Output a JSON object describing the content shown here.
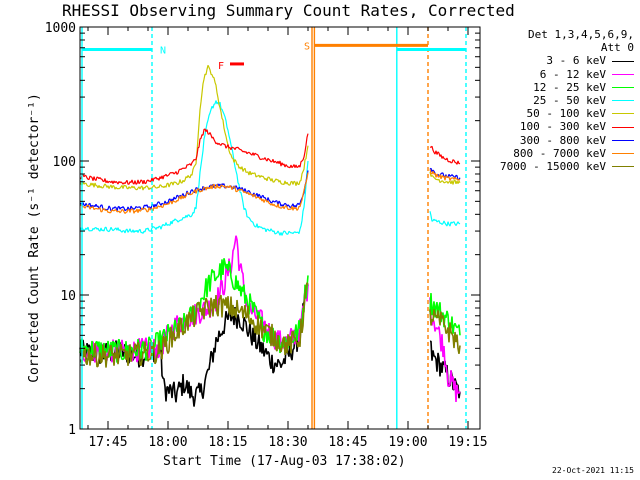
{
  "chart_data": {
    "type": "line",
    "title": "RHESSI Observing Summary Count Rates, Corrected",
    "xlabel": "Start Time (17-Aug-03 17:38:02)",
    "ylabel": "Corrected Count Rate (s⁻¹ detector⁻¹)",
    "y_scale": "log",
    "ylim": [
      1,
      1000
    ],
    "xlim_minutes": [
      0,
      100
    ],
    "x_ticks": [
      {
        "label": "17:45",
        "minutes": 7
      },
      {
        "label": "18:00",
        "minutes": 22
      },
      {
        "label": "18:15",
        "minutes": 37
      },
      {
        "label": "18:30",
        "minutes": 52
      },
      {
        "label": "18:45",
        "minutes": 67
      },
      {
        "label": "19:00",
        "minutes": 82
      },
      {
        "label": "19:15",
        "minutes": 97
      }
    ],
    "y_ticks": [
      {
        "label": "1",
        "value": 1
      },
      {
        "label": "10",
        "value": 10
      },
      {
        "label": "100",
        "value": 100
      },
      {
        "label": "1000",
        "value": 1000
      }
    ],
    "legend_header": [
      "Det 1,3,4,5,6,9,",
      "Att 0"
    ],
    "legend_position": "right",
    "series": [
      {
        "name": "3 - 6 keV",
        "color": "#000000",
        "points": [
          [
            0,
            3.8
          ],
          [
            5,
            3.6
          ],
          [
            10,
            3.8
          ],
          [
            15,
            3.5
          ],
          [
            20,
            4.0
          ],
          [
            21,
            2.0
          ],
          [
            24,
            1.8
          ],
          [
            26,
            2.2
          ],
          [
            28,
            1.8
          ],
          [
            30,
            1.8
          ],
          [
            32,
            2.6
          ],
          [
            34,
            4.5
          ],
          [
            36,
            6.0
          ],
          [
            38,
            7.0
          ],
          [
            40,
            6.8
          ],
          [
            42,
            5.5
          ],
          [
            44,
            4.5
          ],
          [
            46,
            3.8
          ],
          [
            48,
            3.2
          ],
          [
            50,
            3.0
          ],
          [
            52,
            3.5
          ],
          [
            55,
            5.0
          ],
          [
            56,
            8.0
          ],
          [
            57,
            12.0
          ],
          [
            58.5,
            null
          ],
          [
            87.5,
            4.2
          ],
          [
            88,
            3.5
          ],
          [
            90,
            3.0
          ],
          [
            92,
            2.5
          ],
          [
            94,
            2.0
          ],
          [
            95,
            1.9
          ]
        ]
      },
      {
        "name": "6 - 12 keV",
        "color": "#ff00ff",
        "points": [
          [
            0,
            3.8
          ],
          [
            10,
            3.8
          ],
          [
            20,
            4.0
          ],
          [
            22,
            5.0
          ],
          [
            24,
            6.0
          ],
          [
            26,
            6.5
          ],
          [
            28,
            7.0
          ],
          [
            30,
            7.5
          ],
          [
            32,
            8.0
          ],
          [
            34,
            9.0
          ],
          [
            36,
            12.0
          ],
          [
            38,
            18.0
          ],
          [
            39,
            28.0
          ],
          [
            40,
            16.0
          ],
          [
            42,
            8.0
          ],
          [
            44,
            7.0
          ],
          [
            46,
            6.0
          ],
          [
            48,
            5.0
          ],
          [
            50,
            4.5
          ],
          [
            52,
            4.5
          ],
          [
            55,
            5.5
          ],
          [
            56,
            8.0
          ],
          [
            57,
            12.0
          ],
          [
            58.5,
            null
          ],
          [
            87.5,
            8.0
          ],
          [
            89,
            6.0
          ],
          [
            91,
            4.0
          ],
          [
            92,
            2.5
          ],
          [
            94,
            1.9
          ],
          [
            95,
            1.9
          ]
        ]
      },
      {
        "name": "12 - 25 keV",
        "color": "#00ff00",
        "points": [
          [
            0,
            4.0
          ],
          [
            10,
            3.8
          ],
          [
            18,
            4.0
          ],
          [
            20,
            4.5
          ],
          [
            22,
            5.0
          ],
          [
            26,
            6.0
          ],
          [
            28,
            7.0
          ],
          [
            30,
            9.0
          ],
          [
            32,
            12.0
          ],
          [
            34,
            14.0
          ],
          [
            36,
            16.0
          ],
          [
            38,
            14.0
          ],
          [
            40,
            11.0
          ],
          [
            42,
            9.0
          ],
          [
            44,
            7.0
          ],
          [
            46,
            5.5
          ],
          [
            48,
            5.0
          ],
          [
            50,
            4.5
          ],
          [
            52,
            4.5
          ],
          [
            55,
            5.5
          ],
          [
            56,
            9.0
          ],
          [
            57,
            14.0
          ],
          [
            58.5,
            null
          ],
          [
            87.5,
            9.0
          ],
          [
            89,
            8.0
          ],
          [
            91,
            7.0
          ],
          [
            93,
            6.0
          ],
          [
            95,
            5.0
          ]
        ]
      },
      {
        "name": "25 - 50 keV",
        "color": "#00ffff",
        "points": [
          [
            0,
            32
          ],
          [
            4,
            31
          ],
          [
            8,
            31
          ],
          [
            12,
            30
          ],
          [
            16,
            30
          ],
          [
            18,
            31
          ],
          [
            20,
            32
          ],
          [
            22,
            34
          ],
          [
            24,
            36
          ],
          [
            26,
            38
          ],
          [
            28,
            40
          ],
          [
            29,
            45
          ],
          [
            30,
            80
          ],
          [
            31,
            140
          ],
          [
            32,
            200
          ],
          [
            33,
            250
          ],
          [
            34,
            280
          ],
          [
            35,
            265
          ],
          [
            36,
            220
          ],
          [
            37,
            170
          ],
          [
            38,
            120
          ],
          [
            39,
            85
          ],
          [
            40,
            60
          ],
          [
            41,
            45
          ],
          [
            42,
            38
          ],
          [
            44,
            33
          ],
          [
            46,
            31
          ],
          [
            48,
            30
          ],
          [
            50,
            29
          ],
          [
            52,
            29
          ],
          [
            54,
            29
          ],
          [
            55,
            30
          ],
          [
            56,
            45
          ],
          [
            57,
            100
          ],
          [
            58.5,
            null
          ],
          [
            87.5,
            42
          ],
          [
            88,
            36
          ],
          [
            90,
            35
          ],
          [
            92,
            34
          ],
          [
            94,
            34
          ],
          [
            95,
            34
          ]
        ]
      },
      {
        "name": "50 - 100 keV",
        "color": "#c8c800",
        "points": [
          [
            0,
            68
          ],
          [
            4,
            66
          ],
          [
            8,
            64
          ],
          [
            12,
            63
          ],
          [
            16,
            63
          ],
          [
            20,
            64
          ],
          [
            22,
            66
          ],
          [
            24,
            68
          ],
          [
            26,
            72
          ],
          [
            28,
            80
          ],
          [
            29,
            95
          ],
          [
            30,
            250
          ],
          [
            31,
            420
          ],
          [
            32,
            500
          ],
          [
            33,
            450
          ],
          [
            34,
            360
          ],
          [
            35,
            250
          ],
          [
            36,
            180
          ],
          [
            37,
            130
          ],
          [
            38,
            105
          ],
          [
            40,
            90
          ],
          [
            42,
            82
          ],
          [
            44,
            78
          ],
          [
            46,
            75
          ],
          [
            48,
            72
          ],
          [
            50,
            70
          ],
          [
            52,
            69
          ],
          [
            54,
            68
          ],
          [
            55,
            70
          ],
          [
            56,
            90
          ],
          [
            57,
            130
          ],
          [
            58.5,
            null
          ],
          [
            87.5,
            85
          ],
          [
            88,
            75
          ],
          [
            90,
            72
          ],
          [
            92,
            70
          ],
          [
            94,
            69
          ],
          [
            95,
            69
          ]
        ]
      },
      {
        "name": "100 - 300 keV",
        "color": "#ff0000",
        "points": [
          [
            0,
            77
          ],
          [
            4,
            73
          ],
          [
            8,
            70
          ],
          [
            12,
            69
          ],
          [
            16,
            70
          ],
          [
            18,
            72
          ],
          [
            20,
            75
          ],
          [
            22,
            78
          ],
          [
            24,
            82
          ],
          [
            26,
            88
          ],
          [
            28,
            95
          ],
          [
            29,
            105
          ],
          [
            30,
            140
          ],
          [
            31,
            170
          ],
          [
            32,
            165
          ],
          [
            33,
            150
          ],
          [
            34,
            140
          ],
          [
            36,
            130
          ],
          [
            38,
            125
          ],
          [
            40,
            120
          ],
          [
            42,
            115
          ],
          [
            44,
            110
          ],
          [
            46,
            105
          ],
          [
            48,
            100
          ],
          [
            50,
            96
          ],
          [
            52,
            92
          ],
          [
            54,
            90
          ],
          [
            55,
            92
          ],
          [
            56,
            110
          ],
          [
            57,
            160
          ],
          [
            58.5,
            null
          ],
          [
            87.5,
            130
          ],
          [
            89,
            115
          ],
          [
            91,
            105
          ],
          [
            93,
            100
          ],
          [
            95,
            96
          ]
        ]
      },
      {
        "name": "300 - 800 keV",
        "color": "#0000ff",
        "points": [
          [
            0,
            48
          ],
          [
            4,
            46
          ],
          [
            8,
            44
          ],
          [
            12,
            44
          ],
          [
            16,
            45
          ],
          [
            18,
            46
          ],
          [
            20,
            48
          ],
          [
            22,
            50
          ],
          [
            24,
            53
          ],
          [
            26,
            56
          ],
          [
            28,
            60
          ],
          [
            30,
            62
          ],
          [
            32,
            64
          ],
          [
            34,
            65
          ],
          [
            36,
            65
          ],
          [
            38,
            64
          ],
          [
            40,
            62
          ],
          [
            42,
            59
          ],
          [
            44,
            56
          ],
          [
            46,
            53
          ],
          [
            48,
            50
          ],
          [
            50,
            48
          ],
          [
            52,
            47
          ],
          [
            54,
            46
          ],
          [
            55,
            48
          ],
          [
            56,
            60
          ],
          [
            57,
            85
          ],
          [
            58.5,
            null
          ],
          [
            87.5,
            90
          ],
          [
            89,
            80
          ],
          [
            91,
            78
          ],
          [
            93,
            76
          ],
          [
            95,
            75
          ]
        ]
      },
      {
        "name": "800 - 7000 keV",
        "color": "#ff8000",
        "points": [
          [
            0,
            46
          ],
          [
            4,
            44
          ],
          [
            8,
            42
          ],
          [
            12,
            42
          ],
          [
            16,
            43
          ],
          [
            18,
            44
          ],
          [
            20,
            46
          ],
          [
            22,
            48
          ],
          [
            24,
            51
          ],
          [
            26,
            54
          ],
          [
            28,
            58
          ],
          [
            30,
            61
          ],
          [
            32,
            63
          ],
          [
            34,
            65
          ],
          [
            36,
            65
          ],
          [
            38,
            63
          ],
          [
            40,
            60
          ],
          [
            42,
            57
          ],
          [
            44,
            54
          ],
          [
            46,
            51
          ],
          [
            48,
            48
          ],
          [
            50,
            46
          ],
          [
            52,
            45
          ],
          [
            54,
            44
          ],
          [
            55,
            46
          ],
          [
            56,
            58
          ],
          [
            57,
            82
          ],
          [
            58.5,
            null
          ],
          [
            87.5,
            85
          ],
          [
            89,
            78
          ],
          [
            91,
            75
          ],
          [
            93,
            73
          ],
          [
            95,
            72
          ]
        ]
      },
      {
        "name": "7000 - 15000 keV",
        "color": "#808000",
        "points": [
          [
            0,
            3.6
          ],
          [
            10,
            3.5
          ],
          [
            20,
            3.8
          ],
          [
            22,
            4.5
          ],
          [
            26,
            6.0
          ],
          [
            30,
            7.5
          ],
          [
            34,
            8.5
          ],
          [
            38,
            8.0
          ],
          [
            42,
            7.0
          ],
          [
            46,
            5.5
          ],
          [
            50,
            4.5
          ],
          [
            52,
            4.2
          ],
          [
            55,
            4.8
          ],
          [
            56,
            8.0
          ],
          [
            57,
            12.0
          ],
          [
            58.5,
            null
          ],
          [
            87.5,
            7.0
          ],
          [
            89,
            6.5
          ],
          [
            91,
            6.0
          ],
          [
            93,
            5.0
          ],
          [
            95,
            4.2
          ]
        ]
      }
    ],
    "annotations": [
      {
        "label": "N",
        "color": "#00ffff"
      },
      {
        "label": "F",
        "color": "#ff0000"
      },
      {
        "label": "S",
        "color": "#ff8000"
      }
    ],
    "timestamp": "22-Oct-2021 11:15"
  }
}
